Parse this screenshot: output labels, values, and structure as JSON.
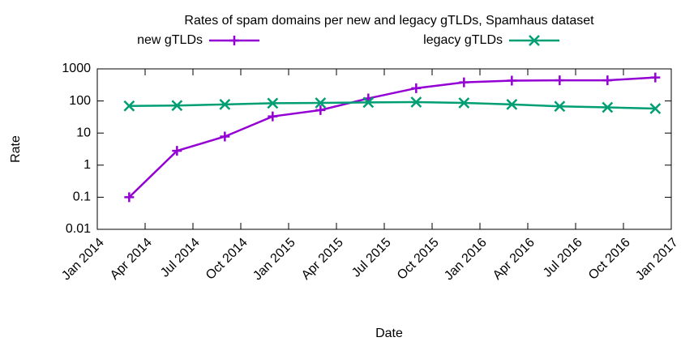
{
  "chart_data": {
    "type": "line",
    "title": "Rates of spam domains per new and legacy gTLDs, Spamhaus dataset",
    "xlabel": "Date",
    "ylabel": "Rate",
    "x": [
      "2014-03",
      "2014-06",
      "2014-09",
      "2014-12",
      "2015-03",
      "2015-06",
      "2015-09",
      "2015-12",
      "2016-03",
      "2016-06",
      "2016-09",
      "2016-12"
    ],
    "series": [
      {
        "name": "new gTLDs",
        "color": "#9400d3",
        "marker": "plus",
        "values": [
          0.1,
          2.8,
          7.8,
          33,
          52,
          120,
          250,
          380,
          430,
          440,
          440,
          540
        ]
      },
      {
        "name": "legacy gTLDs",
        "color": "#009e73",
        "marker": "cross",
        "values": [
          70,
          72,
          78,
          85,
          87,
          90,
          92,
          87,
          78,
          68,
          63,
          58
        ]
      }
    ],
    "xlim": [
      "2014-01",
      "2017-01"
    ],
    "xticks": [
      {
        "value": "2014-01",
        "label": "Jan 2014"
      },
      {
        "value": "2014-04",
        "label": "Apr 2014"
      },
      {
        "value": "2014-07",
        "label": "Jul 2014"
      },
      {
        "value": "2014-10",
        "label": "Oct 2014"
      },
      {
        "value": "2015-01",
        "label": "Jan 2015"
      },
      {
        "value": "2015-04",
        "label": "Apr 2015"
      },
      {
        "value": "2015-07",
        "label": "Jul 2015"
      },
      {
        "value": "2015-10",
        "label": "Oct 2015"
      },
      {
        "value": "2016-01",
        "label": "Jan 2016"
      },
      {
        "value": "2016-04",
        "label": "Apr 2016"
      },
      {
        "value": "2016-07",
        "label": "Jul 2016"
      },
      {
        "value": "2016-10",
        "label": "Oct 2016"
      },
      {
        "value": "2017-01",
        "label": "Jan 2017"
      }
    ],
    "ylim": [
      0.01,
      1000
    ],
    "yticks": [
      0.01,
      0.1,
      1,
      10,
      100,
      1000
    ],
    "log_y": true,
    "grid": false,
    "legend": "top"
  }
}
